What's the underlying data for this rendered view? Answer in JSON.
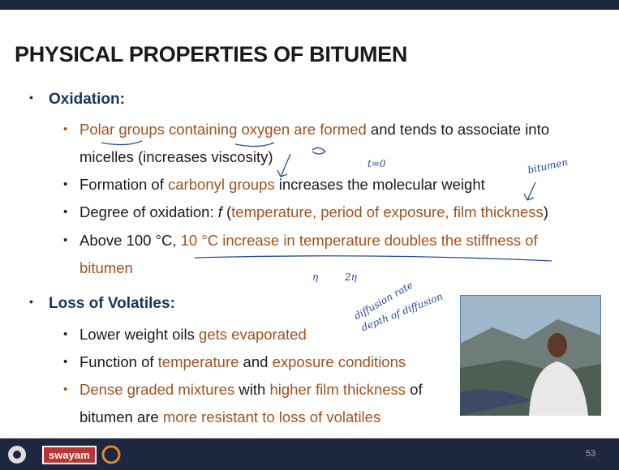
{
  "slide": {
    "title": "PHYSICAL PROPERTIES OF BITUMEN",
    "sections": [
      {
        "heading": "Oxidation:",
        "bullets": [
          {
            "runs": [
              {
                "text": "Polar groups containing oxygen are formed",
                "color": "#a0521e"
              },
              {
                "text": " and tends to associate into micelles (increases viscosity)",
                "color": "#1a1a1a"
              }
            ]
          },
          {
            "runs": [
              {
                "text": "Formation of ",
                "color": "#1a1a1a"
              },
              {
                "text": "carbonyl groups",
                "color": "#a0521e"
              },
              {
                "text": " increases the molecular weight",
                "color": "#1a1a1a"
              }
            ]
          },
          {
            "runs": [
              {
                "text": "Degree of oxidation: ",
                "color": "#1a1a1a"
              },
              {
                "text": "f",
                "color": "#1a1a1a"
              },
              {
                "text": " (",
                "color": "#1a1a1a"
              },
              {
                "text": "temperature, period of exposure, film thickness",
                "color": "#a0521e"
              },
              {
                "text": ")",
                "color": "#1a1a1a"
              }
            ]
          },
          {
            "runs": [
              {
                "text": "Above 100 °C, ",
                "color": "#1a1a1a"
              },
              {
                "text": "10 °C increase in temperature doubles the stiffness of bitumen",
                "color": "#a0521e"
              }
            ]
          }
        ]
      },
      {
        "heading": "Loss of Volatiles:",
        "bullets": [
          {
            "runs": [
              {
                "text": "Lower weight oils ",
                "color": "#1a1a1a"
              },
              {
                "text": "gets evaporated",
                "color": "#a0521e"
              }
            ]
          },
          {
            "runs": [
              {
                "text": "Function of ",
                "color": "#1a1a1a"
              },
              {
                "text": "temperature",
                "color": "#a0521e"
              },
              {
                "text": " and ",
                "color": "#1a1a1a"
              },
              {
                "text": "exposure conditions",
                "color": "#a0521e"
              }
            ]
          },
          {
            "runs": [
              {
                "text": "Dense graded mixtures",
                "color": "#a0521e"
              },
              {
                "text": " with ",
                "color": "#1a1a1a"
              },
              {
                "text": "higher film thickness",
                "color": "#a0521e"
              },
              {
                "text": " of bitumen are ",
                "color": "#1a1a1a"
              },
              {
                "text": "more resistant to loss of volatiles",
                "color": "#a0521e"
              }
            ]
          }
        ]
      }
    ],
    "annotations": [
      "t=0",
      "bitumen",
      "η",
      "2η",
      "diffusion rate",
      "depth of diffusion"
    ],
    "footer": {
      "logo": "swayam",
      "page": "53"
    }
  }
}
